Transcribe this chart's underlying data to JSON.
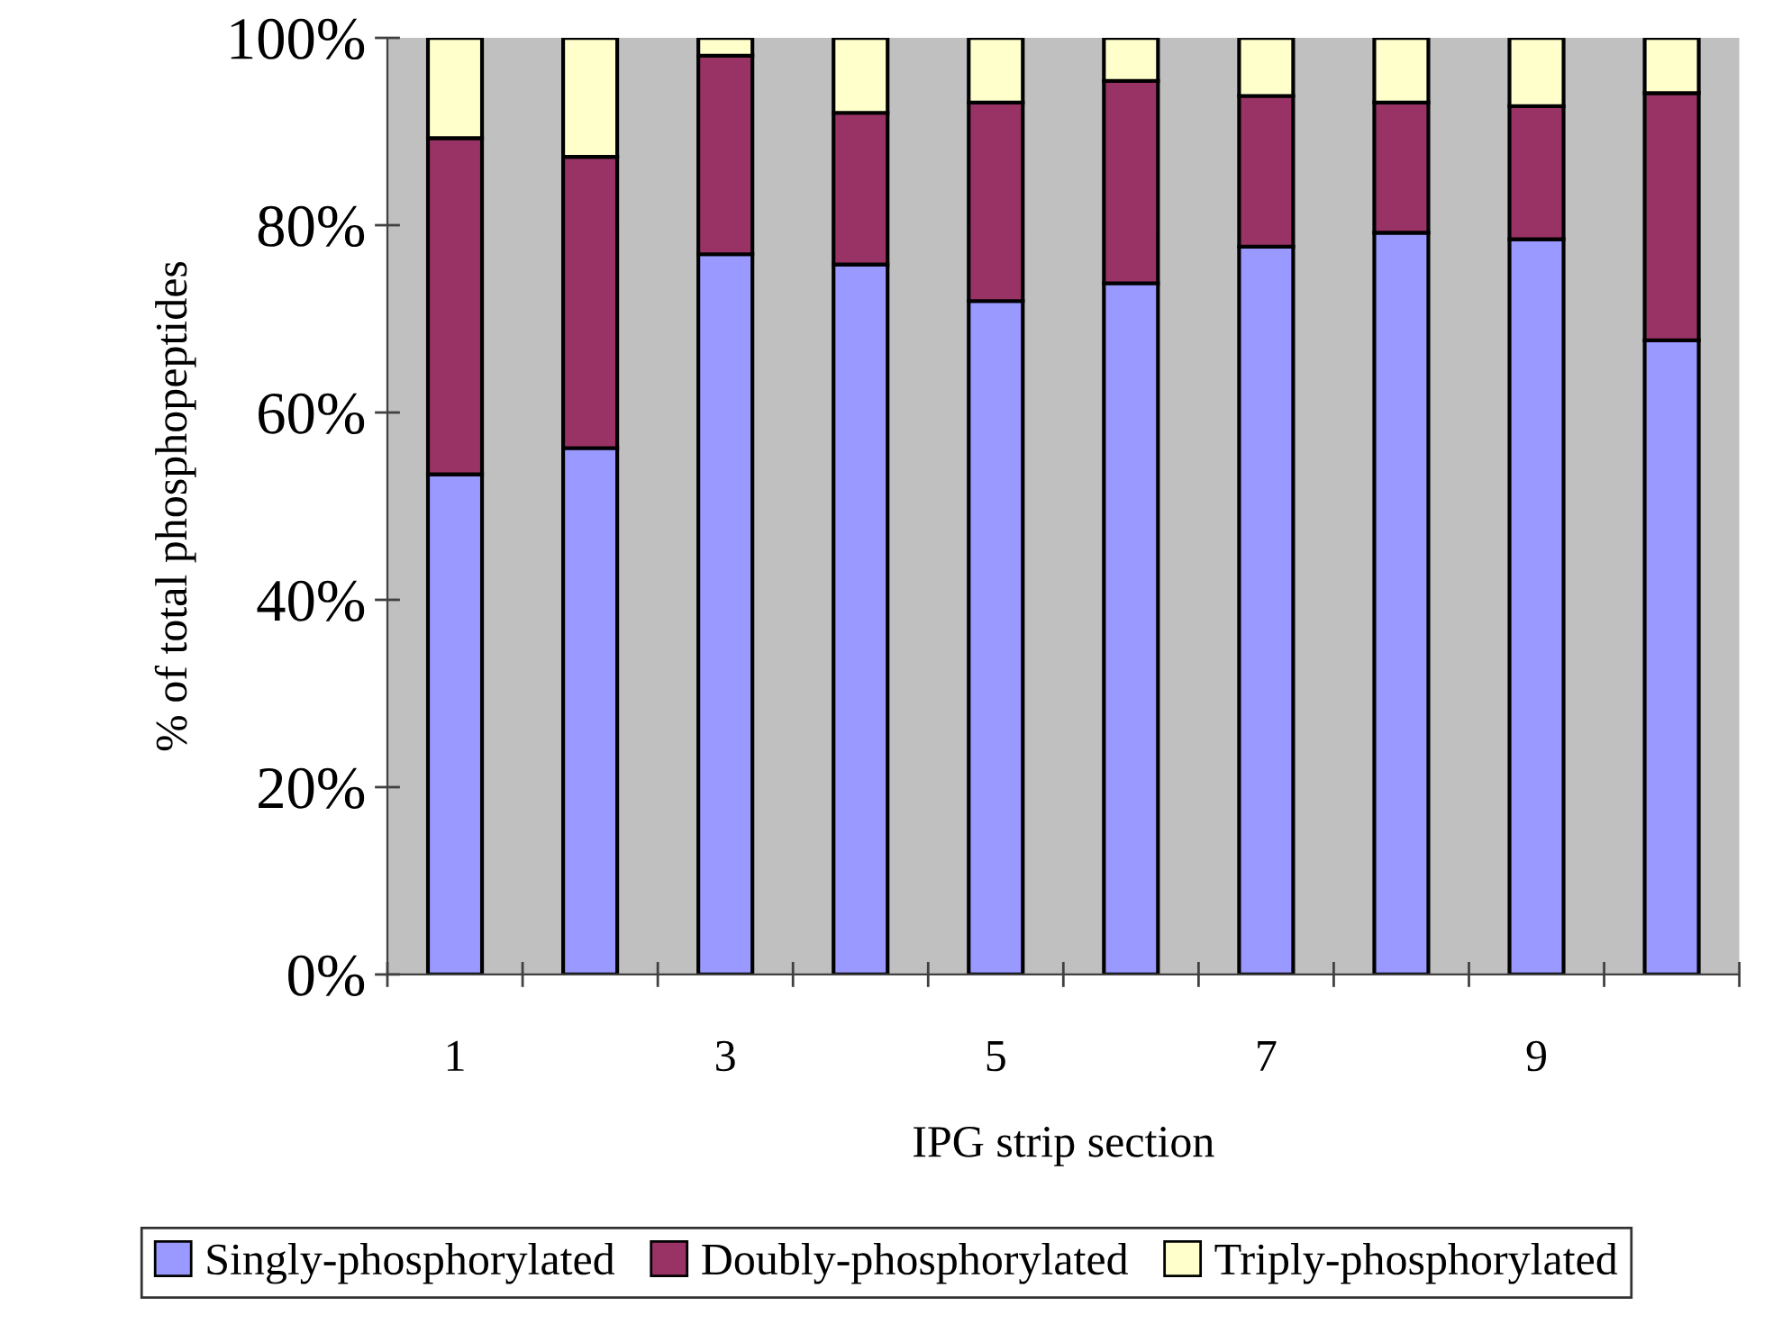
{
  "chart_data": {
    "type": "bar",
    "stacked": true,
    "xlabel": "IPG strip section",
    "ylabel": "% of total phosphopeptides",
    "categories": [
      "1",
      null,
      "3",
      null,
      "5",
      null,
      "7",
      null,
      "9",
      null
    ],
    "series": [
      {
        "name": "Singly-phosphorylated",
        "color": "#9999ff",
        "values": [
          53.4,
          56.2,
          76.9,
          75.8,
          71.9,
          73.8,
          77.7,
          79.2,
          78.5,
          67.7
        ]
      },
      {
        "name": "Doubly-phosphorylated",
        "color": "#993366",
        "values": [
          35.9,
          31.1,
          21.2,
          16.2,
          21.2,
          21.6,
          16.1,
          13.9,
          14.2,
          26.4
        ]
      },
      {
        "name": "Triply-phosphorylated",
        "color": "#ffffcc",
        "values": [
          10.7,
          12.7,
          1.9,
          8.0,
          6.9,
          4.6,
          6.2,
          6.9,
          7.3,
          5.9
        ]
      }
    ],
    "ylim": [
      0,
      100
    ],
    "yticks": [
      {
        "value": 0,
        "label": "0%"
      },
      {
        "value": 20,
        "label": "20%"
      },
      {
        "value": 40,
        "label": "40%"
      },
      {
        "value": 60,
        "label": "60%"
      },
      {
        "value": 80,
        "label": "80%"
      },
      {
        "value": 100,
        "label": "100%"
      }
    ],
    "grid": false,
    "legend": "bottom"
  }
}
